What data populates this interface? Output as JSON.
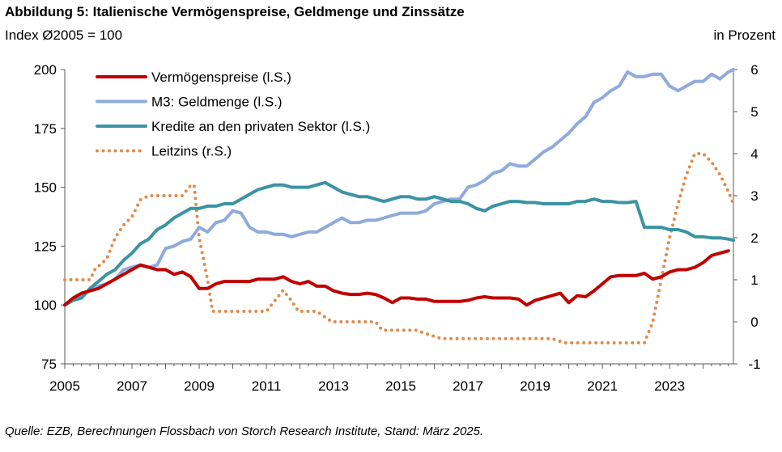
{
  "title": "Abbildung 5: Italienische Vermögenspreise, Geldmenge und Zinssätze",
  "subtitle": "Index Ø2005 = 100",
  "right_axis_label": "in Prozent",
  "source": "Quelle: EZB, Berechnungen Flossbach von Storch Research Institute, Stand: März 2025.",
  "colors": {
    "asset_prices": "#c00000",
    "m3": "#8faadc",
    "credit": "#3b93a4",
    "policy_rate": "#e08b4a",
    "axis": "#595959"
  },
  "chart_data": {
    "type": "line",
    "xlabel": "",
    "ylabel": "Index Ø2005 = 100",
    "y2label": "in Prozent",
    "xlim": [
      2005,
      2024.9
    ],
    "ylim": [
      75,
      200
    ],
    "y2lim": [
      -1,
      6
    ],
    "x_ticks": [
      2005,
      2007,
      2009,
      2011,
      2013,
      2015,
      2017,
      2019,
      2021,
      2023
    ],
    "y_ticks": [
      75,
      100,
      125,
      150,
      175,
      200
    ],
    "y2_ticks": [
      -1,
      0,
      1,
      2,
      3,
      4,
      5,
      6
    ],
    "legend_position": "top-left",
    "series": [
      {
        "name": "Vermögenspreise (l.S.)",
        "axis": "left",
        "style": "solid",
        "color_key": "asset_prices",
        "x": [
          2005,
          2005.25,
          2005.5,
          2005.75,
          2006,
          2006.25,
          2006.5,
          2006.75,
          2007,
          2007.25,
          2007.5,
          2007.75,
          2008,
          2008.25,
          2008.5,
          2008.75,
          2009,
          2009.25,
          2009.5,
          2009.75,
          2010,
          2010.25,
          2010.5,
          2010.75,
          2011,
          2011.25,
          2011.5,
          2011.75,
          2012,
          2012.25,
          2012.5,
          2012.75,
          2013,
          2013.25,
          2013.5,
          2013.75,
          2014,
          2014.25,
          2014.5,
          2014.75,
          2015,
          2015.25,
          2015.5,
          2015.75,
          2016,
          2016.25,
          2016.5,
          2016.75,
          2017,
          2017.25,
          2017.5,
          2017.75,
          2018,
          2018.25,
          2018.5,
          2018.75,
          2019,
          2019.25,
          2019.5,
          2019.75,
          2020,
          2020.25,
          2020.5,
          2020.75,
          2021,
          2021.25,
          2021.5,
          2021.75,
          2022,
          2022.25,
          2022.5,
          2022.75,
          2023,
          2023.25,
          2023.5,
          2023.75,
          2024,
          2024.25,
          2024.5,
          2024.75
        ],
        "values": [
          100,
          103,
          105,
          106,
          107,
          109,
          111,
          113,
          115,
          117,
          116,
          115,
          115,
          113,
          114,
          112,
          107,
          107,
          109,
          110,
          110,
          110,
          110,
          111,
          111,
          111,
          112,
          110,
          109,
          110,
          108,
          108,
          106,
          105,
          104.5,
          104.5,
          105,
          104.5,
          103,
          101,
          103,
          103,
          102.5,
          102.5,
          101.5,
          101.5,
          101.5,
          101.5,
          102,
          103,
          103.5,
          103,
          103,
          103,
          102.5,
          100,
          102,
          103,
          104,
          105,
          101,
          104,
          103.5,
          106,
          109,
          112,
          112.5,
          112.5,
          112.5,
          113.5,
          111,
          112,
          114,
          115,
          115,
          116,
          118,
          121,
          122,
          123
        ]
      },
      {
        "name": "M3: Geldmenge (l.S.)",
        "axis": "left",
        "style": "solid",
        "color_key": "m3",
        "x": [
          2005,
          2005.25,
          2005.5,
          2005.75,
          2006,
          2006.25,
          2006.5,
          2006.75,
          2007,
          2007.25,
          2007.5,
          2007.75,
          2008,
          2008.25,
          2008.5,
          2008.75,
          2009,
          2009.25,
          2009.5,
          2009.75,
          2010,
          2010.25,
          2010.5,
          2010.75,
          2011,
          2011.25,
          2011.5,
          2011.75,
          2012,
          2012.25,
          2012.5,
          2012.75,
          2013,
          2013.25,
          2013.5,
          2013.75,
          2014,
          2014.25,
          2014.5,
          2014.75,
          2015,
          2015.25,
          2015.5,
          2015.75,
          2016,
          2016.25,
          2016.5,
          2016.75,
          2017,
          2017.25,
          2017.5,
          2017.75,
          2018,
          2018.25,
          2018.5,
          2018.75,
          2019,
          2019.25,
          2019.5,
          2019.75,
          2020,
          2020.25,
          2020.5,
          2020.75,
          2021,
          2021.25,
          2021.5,
          2021.75,
          2022,
          2022.25,
          2022.5,
          2022.75,
          2023,
          2023.25,
          2023.5,
          2023.75,
          2024,
          2024.25,
          2024.5,
          2024.75,
          2024.9
        ],
        "values": [
          100,
          102,
          104,
          106,
          108,
          109,
          111,
          115,
          116,
          117,
          116,
          117,
          124,
          125,
          127,
          128,
          133,
          131,
          135,
          136,
          140,
          139,
          133,
          131,
          131,
          130,
          130,
          129,
          130,
          131,
          131,
          133,
          135,
          137,
          135,
          135,
          136,
          136,
          137,
          138,
          139,
          139,
          139,
          140,
          143,
          144,
          145,
          145,
          150,
          151,
          153,
          156,
          157,
          160,
          159,
          159,
          162,
          165,
          167,
          170,
          173,
          177,
          180,
          186,
          188,
          191,
          193,
          199,
          197,
          197,
          198,
          198,
          193,
          191,
          193,
          195,
          195,
          198,
          196,
          199,
          200
        ]
      },
      {
        "name": "Kredite an den privaten Sektor (l.S.)",
        "axis": "left",
        "style": "solid",
        "color_key": "credit",
        "x": [
          2005,
          2005.25,
          2005.5,
          2005.75,
          2006,
          2006.25,
          2006.5,
          2006.75,
          2007,
          2007.25,
          2007.5,
          2007.75,
          2008,
          2008.25,
          2008.5,
          2008.75,
          2009,
          2009.25,
          2009.5,
          2009.75,
          2010,
          2010.25,
          2010.5,
          2010.75,
          2011,
          2011.25,
          2011.5,
          2011.75,
          2012,
          2012.25,
          2012.5,
          2012.75,
          2013,
          2013.25,
          2013.5,
          2013.75,
          2014,
          2014.25,
          2014.5,
          2014.75,
          2015,
          2015.25,
          2015.5,
          2015.75,
          2016,
          2016.25,
          2016.5,
          2016.75,
          2017,
          2017.25,
          2017.5,
          2017.75,
          2018,
          2018.25,
          2018.5,
          2018.75,
          2019,
          2019.25,
          2019.5,
          2019.75,
          2020,
          2020.25,
          2020.5,
          2020.75,
          2021,
          2021.25,
          2021.5,
          2021.75,
          2022,
          2022.25,
          2022.5,
          2022.75,
          2023,
          2023.25,
          2023.5,
          2023.75,
          2024,
          2024.25,
          2024.5,
          2024.75,
          2024.9
        ],
        "values": [
          100,
          102,
          103,
          107,
          110,
          113,
          115,
          119,
          122,
          126,
          128,
          132,
          134,
          137,
          139,
          141,
          141,
          142,
          142,
          143,
          143,
          145,
          147,
          149,
          150,
          151,
          151,
          150,
          150,
          150,
          151,
          152,
          150,
          148,
          147,
          146,
          146,
          145,
          144,
          145,
          146,
          146,
          145,
          145,
          146,
          145,
          144,
          144,
          143,
          141,
          140,
          142,
          143,
          144,
          144,
          143.5,
          143.5,
          143,
          143,
          143,
          143,
          144,
          144,
          145,
          144,
          144,
          143.5,
          143.5,
          144,
          133,
          133,
          133,
          132,
          132,
          131,
          129,
          129,
          128.5,
          128.5,
          128,
          127.5
        ]
      },
      {
        "name": "Leitzins (r.S.)",
        "axis": "right",
        "style": "dotted",
        "color_key": "policy_rate",
        "x": [
          2005,
          2005.75,
          2005.9,
          2006.25,
          2006.5,
          2006.75,
          2007,
          2007.25,
          2007.5,
          2008,
          2008.5,
          2008.75,
          2008.85,
          2009,
          2009.25,
          2009.4,
          2011,
          2011.25,
          2011.5,
          2011.75,
          2011.95,
          2012.5,
          2012.95,
          2014,
          2014.25,
          2014.45,
          2015.25,
          2015.45,
          2016.2,
          2016.3,
          2019.5,
          2019.7,
          2019.85,
          2021.8,
          2022.25,
          2022.5,
          2022.75,
          2023,
          2023.25,
          2023.5,
          2023.75,
          2024,
          2024.25,
          2024.5,
          2024.75,
          2024.9
        ],
        "values": [
          1,
          1,
          1.25,
          1.5,
          2,
          2.3,
          2.5,
          2.9,
          3,
          3,
          3,
          3.25,
          3.25,
          2,
          1,
          0.25,
          0.25,
          0.5,
          0.75,
          0.5,
          0.25,
          0.25,
          0,
          0,
          0,
          -0.2,
          -0.2,
          -0.2,
          -0.4,
          -0.4,
          -0.4,
          -0.45,
          -0.5,
          -0.5,
          -0.5,
          0,
          1,
          2,
          2.8,
          3.5,
          4,
          4,
          3.8,
          3.5,
          3.1,
          2.8
        ]
      }
    ]
  }
}
